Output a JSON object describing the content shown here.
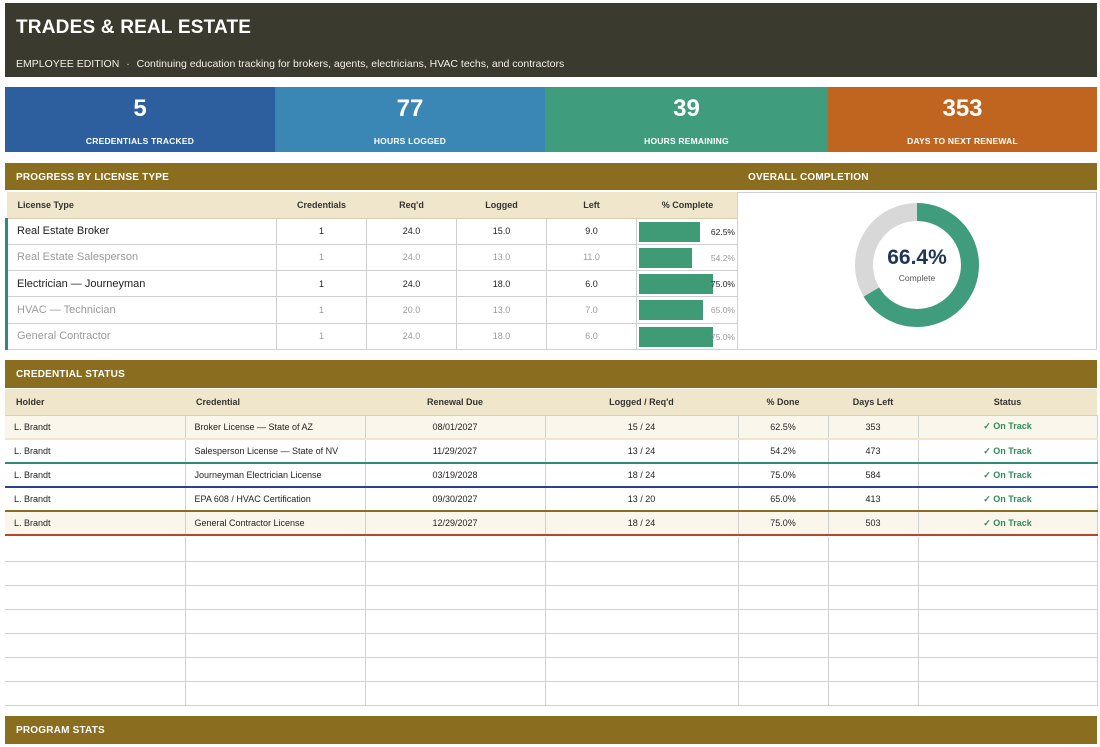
{
  "header": {
    "title": "TRADES & REAL ESTATE",
    "edition": "EMPLOYEE EDITION",
    "separator": "·",
    "subtitle": "Continuing education tracking for brokers, agents, electricians, HVAC techs, and contractors"
  },
  "kpis": [
    {
      "value": "5",
      "label": "CREDENTIALS TRACKED",
      "color": "#2d5f9e"
    },
    {
      "value": "77",
      "label": "HOURS LOGGED",
      "color": "#3a86b4"
    },
    {
      "value": "39",
      "label": "HOURS REMAINING",
      "color": "#3f9d7d"
    },
    {
      "value": "353",
      "label": "DAYS TO NEXT RENEWAL",
      "color": "#c0651f"
    }
  ],
  "progress": {
    "section_title": "PROGRESS BY LICENSE TYPE",
    "columns": [
      "License Type",
      "Credentials",
      "Req'd",
      "Logged",
      "Left",
      "% Complete"
    ],
    "rows": [
      {
        "type": "Real Estate Broker",
        "credentials": "1",
        "reqd": "24.0",
        "logged": "15.0",
        "left": "9.0",
        "pct": "62.5%",
        "fraction": 0.625
      },
      {
        "type": "Real Estate Salesperson",
        "credentials": "1",
        "reqd": "24.0",
        "logged": "13.0",
        "left": "11.0",
        "pct": "54.2%",
        "fraction": 0.542
      },
      {
        "type": "Electrician — Journeyman",
        "credentials": "1",
        "reqd": "24.0",
        "logged": "18.0",
        "left": "6.0",
        "pct": "75.0%",
        "fraction": 0.75
      },
      {
        "type": "HVAC — Technician",
        "credentials": "1",
        "reqd": "20.0",
        "logged": "13.0",
        "left": "7.0",
        "pct": "65.0%",
        "fraction": 0.65
      },
      {
        "type": "General Contractor",
        "credentials": "1",
        "reqd": "24.0",
        "logged": "18.0",
        "left": "6.0",
        "pct": "75.0%",
        "fraction": 0.75
      }
    ]
  },
  "overall": {
    "section_title": "OVERALL COMPLETION",
    "value": "66.4%",
    "fraction": 0.664,
    "label": "Complete",
    "color": "#3f9d7d",
    "track_color": "#d8d8d8"
  },
  "status": {
    "section_title": "CREDENTIAL STATUS",
    "columns": [
      "Holder",
      "Credential",
      "Renewal Due",
      "Logged / Req'd",
      "% Done",
      "Days Left",
      "Status"
    ],
    "rows": [
      {
        "holder": "L. Brandt",
        "credential": "Broker License — State of AZ",
        "due": "08/01/2027",
        "logged": "15 / 24",
        "done": "62.5%",
        "days": "353",
        "status": "✓ On Track",
        "accent": "#efe6cc"
      },
      {
        "holder": "L. Brandt",
        "credential": "Salesperson License — State of NV",
        "due": "11/29/2027",
        "logged": "13 / 24",
        "done": "54.2%",
        "days": "473",
        "status": "✓ On Track",
        "accent": "#2e8b75"
      },
      {
        "holder": "L. Brandt",
        "credential": "Journeyman Electrician License",
        "due": "03/19/2028",
        "logged": "18 / 24",
        "done": "75.0%",
        "days": "584",
        "status": "✓ On Track",
        "accent": "#2d3f8e"
      },
      {
        "holder": "L. Brandt",
        "credential": "EPA 608 / HVAC Certification",
        "due": "09/30/2027",
        "logged": "13 / 20",
        "done": "65.0%",
        "days": "413",
        "status": "✓ On Track",
        "accent": "#8a6d1e"
      },
      {
        "holder": "L. Brandt",
        "credential": "General Contractor License",
        "due": "12/29/2027",
        "logged": "18 / 24",
        "done": "75.0%",
        "days": "503",
        "status": "✓ On Track",
        "accent": "#b5482a"
      }
    ]
  },
  "program_stats": {
    "section_title": "PROGRAM STATS"
  }
}
